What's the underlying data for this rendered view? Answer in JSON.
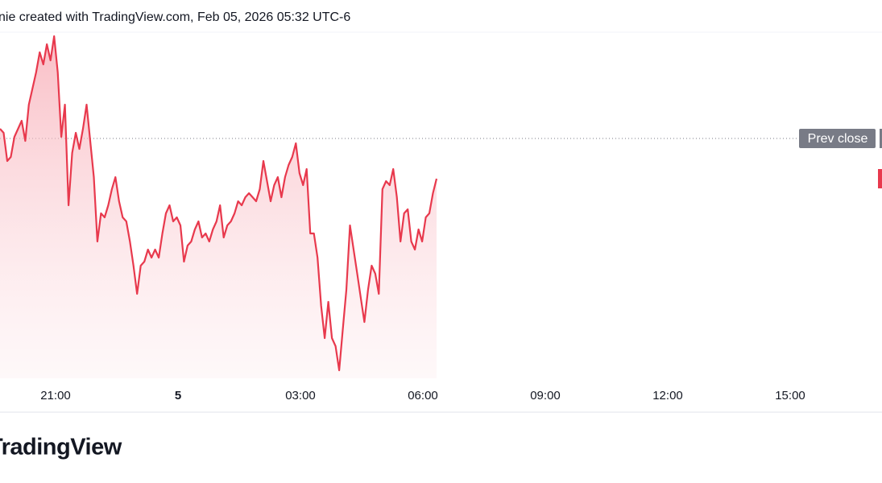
{
  "chart_data": {
    "type": "line",
    "title": "nie created with TradingView.com, Feb 05, 2026 05:32 UTC-6",
    "brand": "TradingView",
    "color": "#e8394d",
    "ylim": [
      0,
      430
    ],
    "prev_close": 298,
    "prev_close_label": "Prev close",
    "xtick_labels": [
      "21:00",
      "5",
      "03:00",
      "06:00",
      "09:00",
      "12:00",
      "15:00"
    ],
    "values": [
      310,
      305,
      270,
      275,
      300,
      310,
      320,
      295,
      340,
      360,
      380,
      405,
      390,
      415,
      395,
      425,
      380,
      300,
      340,
      215,
      280,
      305,
      285,
      310,
      340,
      295,
      250,
      170,
      205,
      200,
      215,
      235,
      250,
      220,
      200,
      195,
      170,
      140,
      105,
      140,
      145,
      160,
      150,
      160,
      150,
      180,
      205,
      215,
      195,
      200,
      190,
      145,
      165,
      170,
      185,
      195,
      175,
      180,
      170,
      185,
      195,
      215,
      175,
      190,
      195,
      205,
      220,
      215,
      225,
      230,
      225,
      220,
      235,
      270,
      245,
      220,
      240,
      250,
      225,
      250,
      265,
      275,
      292,
      255,
      240,
      260,
      180,
      180,
      150,
      90,
      50,
      95,
      50,
      40,
      10,
      60,
      110,
      190,
      160,
      130,
      100,
      70,
      110,
      140,
      130,
      105,
      235,
      245,
      240,
      260,
      225,
      170,
      205,
      210,
      170,
      160,
      185,
      170,
      200,
      205,
      230,
      248
    ]
  }
}
